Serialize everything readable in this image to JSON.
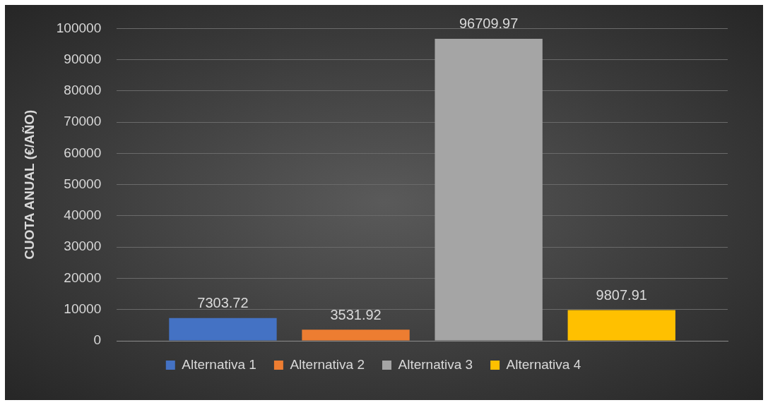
{
  "chart_data": {
    "type": "bar",
    "ylabel": "CUOTA ANUAL (€/AÑO)",
    "categories": [
      null
    ],
    "series": [
      {
        "name": "Alternativa 1",
        "color": "#4472c4",
        "values": [
          7303.72
        ]
      },
      {
        "name": "Alternativa 2",
        "color": "#ed7d31",
        "values": [
          3531.92
        ]
      },
      {
        "name": "Alternativa 3",
        "color": "#a5a5a5",
        "values": [
          96709.97
        ]
      },
      {
        "name": "Alternativa 4",
        "color": "#ffc000",
        "values": [
          9807.91
        ]
      }
    ],
    "ylim": [
      0,
      100000
    ],
    "yticks": [
      0,
      10000,
      20000,
      30000,
      40000,
      50000,
      60000,
      70000,
      80000,
      90000,
      100000
    ],
    "grid": "y",
    "legend": "bottom",
    "data_labels": true
  }
}
